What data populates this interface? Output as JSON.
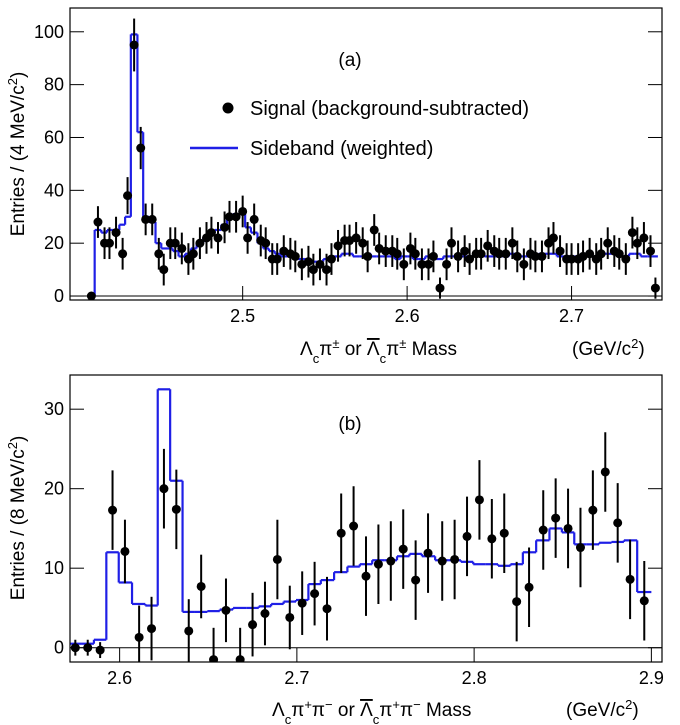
{
  "chart_data": [
    {
      "type": "errorbar",
      "label": "(a)",
      "legend": "upper right",
      "ylabel": [
        "Entries / (4 MeV/c",
        "2",
        ")"
      ],
      "xlabel": [
        "Λ",
        "c",
        "π",
        "±",
        " or ",
        "Λ",
        "c",
        "π",
        "±",
        " Mass"
      ],
      "xunit": [
        "(GeV/c",
        "2",
        ")"
      ],
      "xlim": [
        2.395,
        2.755
      ],
      "xticks": [
        2.5,
        2.6,
        2.7
      ],
      "ylim": [
        -1.5,
        109
      ],
      "yticks": [
        0,
        20,
        40,
        60,
        80,
        100
      ],
      "x": [
        2.408,
        2.412,
        2.416,
        2.419,
        2.423,
        2.427,
        2.43,
        2.434,
        2.438,
        2.441,
        2.445,
        2.449,
        2.452,
        2.456,
        2.459,
        2.463,
        2.467,
        2.47,
        2.474,
        2.478,
        2.481,
        2.485,
        2.489,
        2.492,
        2.496,
        2.5,
        2.503,
        2.507,
        2.511,
        2.514,
        2.518,
        2.521,
        2.525,
        2.529,
        2.532,
        2.536,
        2.54,
        2.543,
        2.547,
        2.551,
        2.554,
        2.558,
        2.562,
        2.565,
        2.569,
        2.573,
        2.576,
        2.58,
        2.583,
        2.587,
        2.591,
        2.594,
        2.598,
        2.602,
        2.605,
        2.609,
        2.613,
        2.616,
        2.62,
        2.624,
        2.627,
        2.631,
        2.635,
        2.638,
        2.642,
        2.645,
        2.649,
        2.653,
        2.656,
        2.66,
        2.664,
        2.667,
        2.671,
        2.675,
        2.678,
        2.682,
        2.686,
        2.689,
        2.693,
        2.697,
        2.7,
        2.704,
        2.707,
        2.711,
        2.715,
        2.718,
        2.722,
        2.726,
        2.729,
        2.733,
        2.737,
        2.74,
        2.744,
        2.748,
        2.751
      ],
      "series": [
        {
          "name": "Signal (background-subtracted)",
          "type": "errorbar",
          "color": "#000000",
          "values": [
            0,
            28,
            20,
            20,
            24,
            16,
            38,
            95,
            56,
            29,
            29,
            16,
            10,
            20,
            20,
            18,
            14,
            16,
            20,
            22,
            24,
            22,
            26,
            30,
            30,
            32,
            22,
            29,
            21,
            20,
            14,
            14,
            17,
            16,
            15,
            12,
            13,
            10,
            12,
            10,
            14,
            19,
            21,
            21,
            22,
            20,
            15,
            25,
            18,
            17,
            17,
            16,
            12,
            18,
            16,
            12,
            12,
            15,
            3,
            12,
            20,
            15,
            17,
            14,
            16,
            16,
            19,
            17,
            16,
            16,
            20,
            15,
            12,
            16,
            15,
            15,
            20,
            22,
            17,
            14,
            14,
            14,
            15,
            16,
            14,
            16,
            20,
            17,
            16,
            14,
            24,
            20,
            22,
            17,
            3
          ],
          "errors": [
            1,
            6,
            6,
            6,
            6,
            6,
            7,
            10,
            8,
            6,
            6,
            6,
            6,
            6,
            6,
            6,
            6,
            6,
            6,
            6,
            6,
            6,
            6,
            6,
            6,
            6,
            6,
            6,
            6,
            6,
            6,
            6,
            6,
            6,
            6,
            6,
            6,
            6,
            6,
            6,
            6,
            6,
            6,
            6,
            6,
            6,
            6,
            6,
            6,
            6,
            6,
            6,
            6,
            6,
            6,
            6,
            6,
            6,
            4,
            6,
            6,
            6,
            6,
            6,
            6,
            6,
            6,
            6,
            6,
            6,
            6,
            6,
            6,
            6,
            6,
            6,
            6,
            6,
            6,
            6,
            6,
            6,
            6,
            6,
            6,
            6,
            6,
            6,
            6,
            6,
            6,
            6,
            6,
            6,
            4
          ]
        },
        {
          "name": "Sideband (weighted)",
          "type": "step",
          "color": "#1f1fe6",
          "values": [
            0,
            25,
            24,
            25,
            25,
            27,
            30,
            99,
            62,
            30,
            28,
            20,
            18,
            18,
            17,
            15,
            16,
            18,
            20,
            22,
            24,
            25,
            27,
            30,
            31,
            31,
            26,
            24,
            20,
            18,
            17,
            16,
            15,
            15,
            14,
            14,
            14,
            13,
            13,
            14,
            15,
            15,
            16,
            16,
            15,
            15,
            16,
            15,
            15,
            15,
            15,
            14,
            15,
            15,
            14,
            14,
            15,
            14,
            14,
            15,
            15,
            15,
            15,
            15,
            15,
            16,
            15,
            15,
            15,
            15,
            16,
            15,
            15,
            15,
            15,
            16,
            16,
            16,
            15,
            15,
            15,
            15,
            16,
            15,
            15,
            16,
            16,
            16,
            15,
            15,
            16,
            16,
            15,
            15,
            15
          ]
        }
      ]
    },
    {
      "type": "errorbar",
      "label": "(b)",
      "ylabel": [
        "Entries / (8 MeV/c",
        "2",
        ")"
      ],
      "xlabel": [
        "Λ",
        "c",
        "π",
        "+",
        "π",
        "−",
        " or ",
        "Λ",
        "c",
        "π",
        "+",
        "π",
        "−",
        " Mass"
      ],
      "xunit": [
        "(GeV/c",
        "2",
        ")"
      ],
      "xlim": [
        2.572,
        2.906
      ],
      "xticks": [
        2.6,
        2.7,
        2.8,
        2.9
      ],
      "ylim": [
        -1.8,
        34.3
      ],
      "yticks": [
        0,
        10,
        20,
        30
      ],
      "x": [
        2.575,
        2.582,
        2.589,
        2.596,
        2.603,
        2.611,
        2.618,
        2.625,
        2.632,
        2.639,
        2.646,
        2.653,
        2.66,
        2.668,
        2.675,
        2.682,
        2.689,
        2.696,
        2.703,
        2.71,
        2.717,
        2.725,
        2.732,
        2.739,
        2.746,
        2.753,
        2.76,
        2.767,
        2.774,
        2.782,
        2.789,
        2.796,
        2.803,
        2.81,
        2.817,
        2.824,
        2.831,
        2.839,
        2.846,
        2.853,
        2.86,
        2.867,
        2.874,
        2.881,
        2.888,
        2.896
      ],
      "series": [
        {
          "type": "errorbar",
          "color": "#000000",
          "values": [
            0,
            0,
            -0.3,
            17.3,
            12.1,
            1.3,
            2.4,
            20,
            17.4,
            2.1,
            7.7,
            -1.5,
            4.7,
            -1.5,
            2.9,
            4.3,
            11.1,
            3.8,
            5.6,
            6.8,
            4.9,
            14.4,
            15.3,
            9.0,
            10.5,
            10.9,
            12.4,
            8.5,
            11.9,
            10.9,
            11.1,
            14.0,
            18.6,
            13.7,
            14.4,
            5.8,
            7.6,
            14.8,
            16.3,
            15.0,
            12.6,
            17.3,
            22.1,
            15.7,
            8.6,
            5.9
          ],
          "errors": [
            1,
            1,
            1,
            5,
            4,
            4,
            4,
            5,
            5,
            4,
            4,
            4,
            4,
            4,
            4,
            4,
            5,
            4,
            4,
            4,
            4,
            5,
            5,
            5,
            5,
            5,
            5,
            5,
            5,
            5,
            5,
            5,
            5,
            5,
            5,
            5,
            5,
            5,
            5,
            5,
            5,
            5,
            5,
            5,
            5,
            5
          ]
        },
        {
          "type": "step",
          "color": "#1f1fe6",
          "values": [
            0.5,
            0.5,
            1,
            12,
            8.2,
            5.5,
            5.3,
            32.5,
            21,
            4.5,
            4.5,
            4.6,
            4.8,
            5,
            5,
            5.2,
            5.5,
            5.8,
            6,
            8,
            8.5,
            9.5,
            10.2,
            10.5,
            11,
            11,
            11.5,
            11.8,
            11.5,
            11,
            11,
            10.8,
            10.5,
            10.5,
            10.3,
            10.5,
            12,
            13.5,
            15,
            14.5,
            13,
            13,
            13.2,
            13.3,
            13.5,
            7
          ]
        }
      ]
    }
  ]
}
